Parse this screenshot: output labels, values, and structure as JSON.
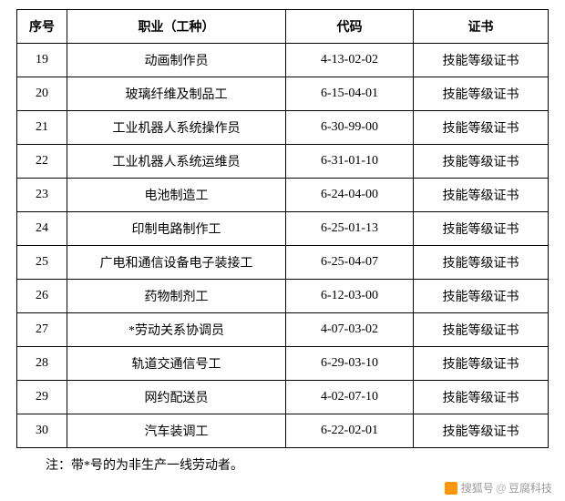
{
  "headers": {
    "seq": "序号",
    "job": "职业（工种）",
    "code": "代码",
    "cert": "证书"
  },
  "rows": [
    {
      "seq": "19",
      "job": "动画制作员",
      "code": "4-13-02-02",
      "cert": "技能等级证书"
    },
    {
      "seq": "20",
      "job": "玻璃纤维及制品工",
      "code": "6-15-04-01",
      "cert": "技能等级证书"
    },
    {
      "seq": "21",
      "job": "工业机器人系统操作员",
      "code": "6-30-99-00",
      "cert": "技能等级证书"
    },
    {
      "seq": "22",
      "job": "工业机器人系统运维员",
      "code": "6-31-01-10",
      "cert": "技能等级证书"
    },
    {
      "seq": "23",
      "job": "电池制造工",
      "code": "6-24-04-00",
      "cert": "技能等级证书"
    },
    {
      "seq": "24",
      "job": "印制电路制作工",
      "code": "6-25-01-13",
      "cert": "技能等级证书"
    },
    {
      "seq": "25",
      "job": "广电和通信设备电子装接工",
      "code": "6-25-04-07",
      "cert": "技能等级证书"
    },
    {
      "seq": "26",
      "job": "药物制剂工",
      "code": "6-12-03-00",
      "cert": "技能等级证书"
    },
    {
      "seq": "27",
      "job": "*劳动关系协调员",
      "code": "4-07-03-02",
      "cert": "技能等级证书"
    },
    {
      "seq": "28",
      "job": "轨道交通信号工",
      "code": "6-29-03-10",
      "cert": "技能等级证书"
    },
    {
      "seq": "29",
      "job": "网约配送员",
      "code": "4-02-07-10",
      "cert": "技能等级证书"
    },
    {
      "seq": "30",
      "job": "汽车装调工",
      "code": "6-22-02-01",
      "cert": "技能等级证书"
    }
  ],
  "note": "注：带*号的为非生产一线劳动者。",
  "watermark": {
    "source": "搜狐号",
    "at": "@",
    "author": "豆腐科技"
  }
}
